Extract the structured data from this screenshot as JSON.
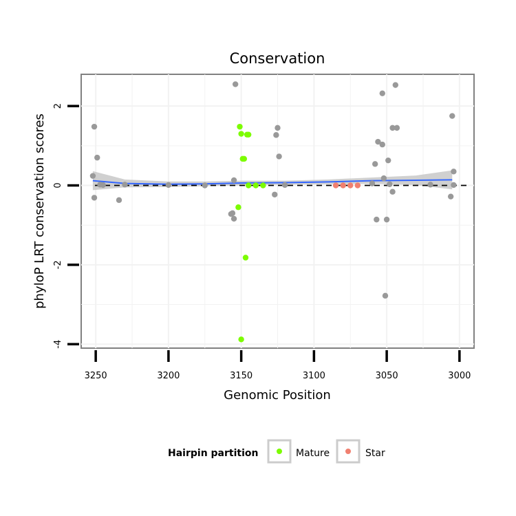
{
  "chart_data": {
    "type": "scatter",
    "title": "Conservation",
    "xlabel": "Genomic Position",
    "ylabel": "phyloP LRT conservation scores",
    "x_reversed": true,
    "xlim": [
      3260,
      2990
    ],
    "ylim": [
      -4.1,
      2.8
    ],
    "x_ticks": [
      3250,
      3200,
      3150,
      3100,
      3050,
      3000
    ],
    "x_tick_labels": [
      "3250",
      "3200",
      "3150",
      "3100",
      "3050",
      "3000"
    ],
    "y_ticks": [
      2,
      0,
      -2,
      -4
    ],
    "y_tick_labels": [
      "2",
      "0",
      "-2",
      "-4"
    ],
    "grid": true,
    "reference_line": {
      "y": 0,
      "style": "dashed"
    },
    "legend": {
      "title": "Hairpin partition",
      "position": "bottom",
      "entries": [
        {
          "label": "Mature",
          "color": "#7cfc00"
        },
        {
          "label": "Star",
          "color": "#f08070"
        }
      ]
    },
    "colors": {
      "other": "#999999",
      "mature": "#7cfc00",
      "star": "#f08070",
      "smooth": "#3366ff",
      "band": "#c8c8c8"
    },
    "series": [
      {
        "name": "Other",
        "points": [
          [
            3251,
            1.48
          ],
          [
            3252,
            0.24
          ],
          [
            3251,
            -0.31
          ],
          [
            3249,
            0.7
          ],
          [
            3247,
            0.02
          ],
          [
            3245,
            0.01
          ],
          [
            3234,
            -0.37
          ],
          [
            3230,
            0.02
          ],
          [
            3200,
            0.01
          ],
          [
            3175,
            0.0
          ],
          [
            3154,
            2.55
          ],
          [
            3157,
            -0.72
          ],
          [
            3155,
            -0.84
          ],
          [
            3155,
            0.13
          ],
          [
            3156,
            -0.7
          ],
          [
            3125,
            1.45
          ],
          [
            3126,
            1.27
          ],
          [
            3124,
            0.73
          ],
          [
            3127,
            -0.23
          ],
          [
            3120,
            0.01
          ],
          [
            3053,
            2.32
          ],
          [
            3056,
            1.1
          ],
          [
            3053,
            1.03
          ],
          [
            3049,
            0.63
          ],
          [
            3046,
            1.45
          ],
          [
            3043,
            1.45
          ],
          [
            3044,
            2.53
          ],
          [
            3058,
            0.54
          ],
          [
            3052,
            0.18
          ],
          [
            3057,
            -0.86
          ],
          [
            3050,
            -0.86
          ],
          [
            3051,
            -2.78
          ],
          [
            3046,
            -0.16
          ],
          [
            3060,
            0.05
          ],
          [
            3048,
            0.03
          ],
          [
            3005,
            1.75
          ],
          [
            3004,
            0.35
          ],
          [
            3006,
            -0.28
          ],
          [
            3004,
            0.01
          ],
          [
            3020,
            0.02
          ]
        ]
      },
      {
        "name": "Mature",
        "points": [
          [
            3151,
            1.48
          ],
          [
            3150,
            1.3
          ],
          [
            3145,
            1.28
          ],
          [
            3146,
            1.28
          ],
          [
            3149,
            0.67
          ],
          [
            3148,
            0.67
          ],
          [
            3152,
            -0.55
          ],
          [
            3147,
            -1.82
          ],
          [
            3150,
            -3.88
          ],
          [
            3145,
            0.0
          ],
          [
            3140,
            0.0
          ],
          [
            3135,
            0.0
          ]
        ]
      },
      {
        "name": "Star",
        "points": [
          [
            3085,
            0.0
          ],
          [
            3080,
            0.0
          ],
          [
            3075,
            0.0
          ],
          [
            3070,
            0.0
          ]
        ]
      }
    ],
    "smooth_fit": {
      "x": [
        3252,
        3230,
        3200,
        3175,
        3150,
        3120,
        3090,
        3060,
        3030,
        3005
      ],
      "y": [
        0.12,
        0.05,
        0.03,
        0.04,
        0.06,
        0.07,
        0.09,
        0.12,
        0.13,
        0.14
      ],
      "band_upper": [
        0.36,
        0.15,
        0.1,
        0.1,
        0.12,
        0.12,
        0.15,
        0.2,
        0.25,
        0.38
      ],
      "band_lower": [
        -0.12,
        -0.05,
        -0.04,
        -0.02,
        0.0,
        0.02,
        0.03,
        0.04,
        0.01,
        -0.1
      ]
    }
  }
}
